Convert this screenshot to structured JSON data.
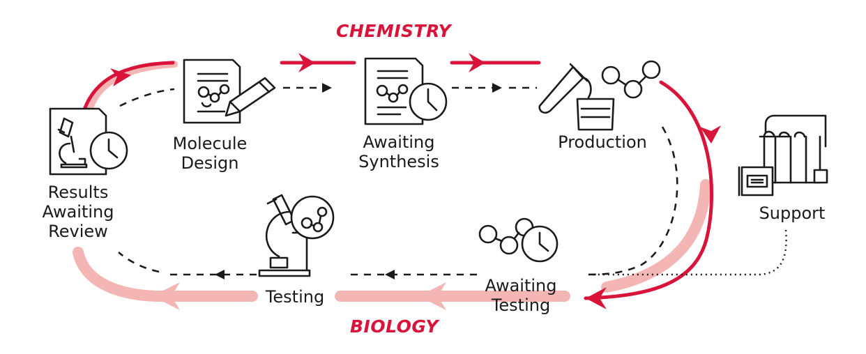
{
  "colors": {
    "chemistry_accent": "#d9143a",
    "biology_accent": "#f4b6b4",
    "ink": "#1a1a1a"
  },
  "sections": {
    "chemistry": "CHEMISTRY",
    "biology": "BIOLOGY"
  },
  "stages": {
    "molecule_design": [
      "Molecule",
      "Design"
    ],
    "awaiting_synthesis": [
      "Awaiting",
      "Synthesis"
    ],
    "production": [
      "Production"
    ],
    "support": [
      "Support"
    ],
    "awaiting_testing": [
      "Awaiting",
      "Testing"
    ],
    "testing": [
      "Testing"
    ],
    "results_awaiting_review": [
      "Results",
      "Awaiting",
      "Review"
    ]
  },
  "icons": {
    "molecule_design": "document-molecule-pencil-icon",
    "awaiting_synthesis": "document-clock-icon",
    "production": "test-tube-beaker-molecule-icon",
    "support": "lab-equipment-icon",
    "awaiting_testing": "molecule-clock-icon",
    "testing": "microscope-molecule-icon",
    "results_awaiting_review": "document-microscope-clock-icon"
  }
}
